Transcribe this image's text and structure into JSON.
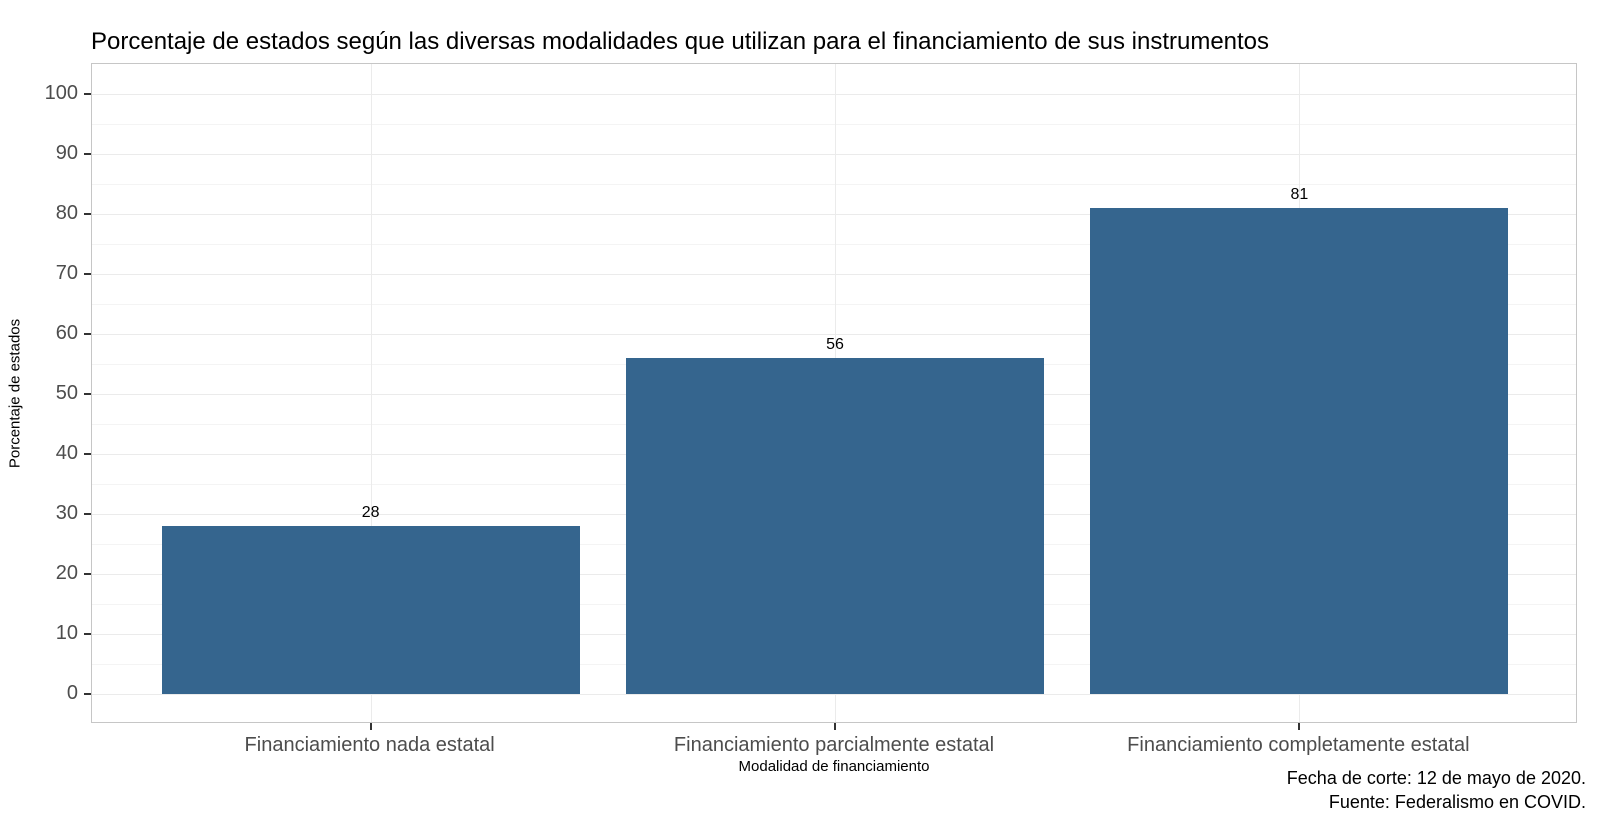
{
  "chart_data": {
    "type": "bar",
    "title": "Porcentaje de estados según las diversas modalidades que utilizan para el financiamiento de sus instrumentos",
    "categories": [
      "Financiamiento nada estatal",
      "Financiamiento parcialmente estatal",
      "Financiamiento completamente estatal"
    ],
    "values": [
      28,
      56,
      81
    ],
    "bar_labels": [
      "28",
      "56",
      "81"
    ],
    "xlabel": "Modalidad de financiamiento",
    "ylabel": "Porcentaje de estados",
    "ylim": [
      0,
      100
    ],
    "ylim_expanded": [
      -5,
      105
    ],
    "y_major_ticks": [
      0,
      10,
      20,
      30,
      40,
      50,
      60,
      70,
      80,
      90,
      100
    ],
    "y_minor_ticks": [
      5,
      15,
      25,
      35,
      45,
      55,
      65,
      75,
      85,
      95
    ],
    "grid": "major-and-minor, horizontal; vertical major at category centers",
    "legend_position": "none",
    "bar_color": "#35658e",
    "caption_lines": [
      "Fecha de corte: 12 de mayo de 2020.",
      "Fuente: Federalismo en COVID."
    ]
  },
  "style": {
    "panel_background": "#ffffff",
    "panel_border": "#c6c6c6",
    "grid_major_color": "#ebebeb",
    "grid_minor_color": "#f4f4f4",
    "tick_color": "#333333",
    "axis_text_color": "#4d4d4d",
    "title_color": "#000000"
  }
}
